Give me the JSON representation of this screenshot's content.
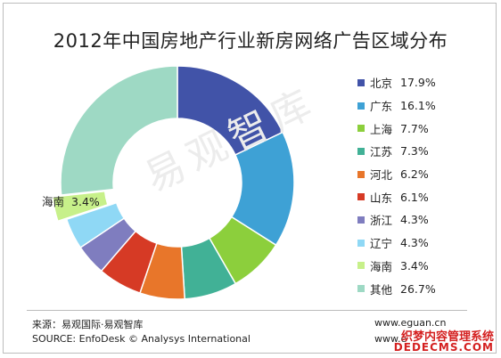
{
  "title": "2012年中国房地产行业新房网络广告区域分布",
  "watermark": "易观智库",
  "chart_data": {
    "type": "pie",
    "donut": true,
    "title": "2012年中国房地产行业新房网络广告区域分布",
    "legend_position": "right",
    "exploded_slice": "海南",
    "slices": [
      {
        "label": "北京",
        "value": 17.9,
        "display": "17.9%",
        "color": "#4153a8"
      },
      {
        "label": "广东",
        "value": 16.1,
        "display": "16.1%",
        "color": "#3ea1d5"
      },
      {
        "label": "上海",
        "value": 7.7,
        "display": "7.7%",
        "color": "#8ccf3c"
      },
      {
        "label": "江苏",
        "value": 7.3,
        "display": "7.3%",
        "color": "#41b196"
      },
      {
        "label": "河北",
        "value": 6.2,
        "display": "6.2%",
        "color": "#e8762a"
      },
      {
        "label": "山东",
        "value": 6.1,
        "display": "6.1%",
        "color": "#d63a25"
      },
      {
        "label": "浙江",
        "value": 4.3,
        "display": "4.3%",
        "color": "#7f7dbf"
      },
      {
        "label": "辽宁",
        "value": 4.3,
        "display": "4.3%",
        "color": "#8fd8f5"
      },
      {
        "label": "海南",
        "value": 3.4,
        "display": "3.4%",
        "color": "#c7f08a"
      },
      {
        "label": "其他",
        "value": 26.7,
        "display": "26.7%",
        "color": "#9ed9c4"
      }
    ],
    "callout": {
      "label": "海南",
      "value": "3.4%"
    }
  },
  "footer": {
    "source_cn": "来源：易观国际·易观智库",
    "source_en": "SOURCE: EnfoDesk © Analysys International",
    "site1": "www.eguan.cn",
    "site2": "www.e",
    "badge_top": "织梦内容管理系统",
    "badge_bottom": "DEDECMS.COM"
  }
}
